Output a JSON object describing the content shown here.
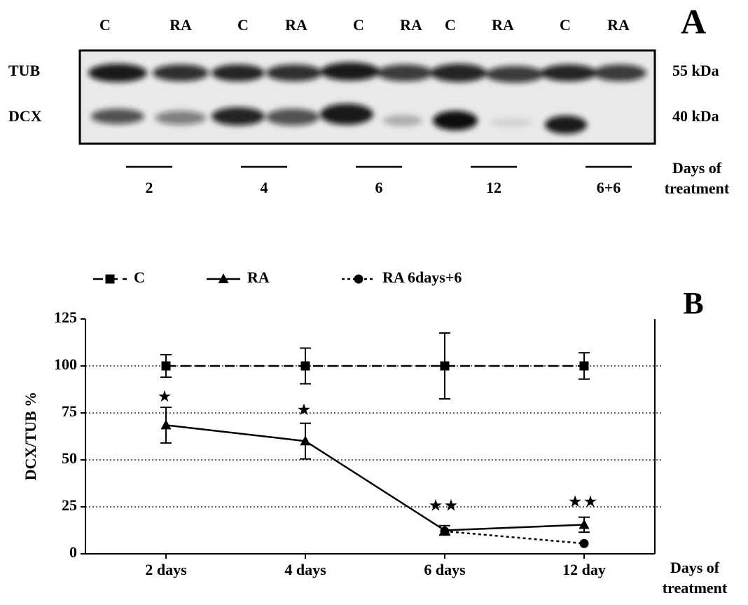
{
  "panel_labels": [
    "A",
    "B"
  ],
  "blot": {
    "lanes": [
      "C",
      "RA",
      "C",
      "RA",
      "C",
      "RA",
      "C",
      "RA",
      "C",
      "RA"
    ],
    "rows": [
      "TUB",
      "DCX"
    ],
    "sizes": [
      "55 kDa",
      "40 kDa"
    ],
    "groups": [
      "2",
      "4",
      "6",
      "12",
      "6+6"
    ],
    "groups_label": "Days of treatment"
  },
  "chart_data": {
    "type": "line",
    "categories": [
      "2 days",
      "4 days",
      "6 days",
      "12 day"
    ],
    "x_label": "Days of treatment",
    "y_label": "DCX/TUB %",
    "ylim": [
      0,
      125
    ],
    "yticks": [
      0,
      25,
      50,
      75,
      100,
      125
    ],
    "grid": true,
    "legend": "top",
    "series": [
      {
        "name": "C",
        "color": "#000000",
        "line_style": "dashed",
        "marker": "square",
        "values": [
          100,
          100,
          100,
          100
        ],
        "errors": [
          6,
          9.5,
          17.5,
          7
        ]
      },
      {
        "name": "RA",
        "color": "#000000",
        "line_style": "solid",
        "marker": "triangle",
        "values": [
          68.5,
          60,
          12.5,
          15.5
        ],
        "errors": [
          9.5,
          9.5,
          2.5,
          4
        ]
      },
      {
        "name": "RA 6days+6",
        "color": "#000000",
        "line_style": "dotted",
        "marker": "circle",
        "values": [
          null,
          null,
          12,
          5.5
        ],
        "errors": [
          null,
          null,
          null,
          null
        ]
      }
    ],
    "annotations": [
      {
        "text": "★",
        "x": "2 days",
        "y": 83
      },
      {
        "text": "★",
        "x": "4 days",
        "y": 76
      },
      {
        "text": "★★",
        "x": "6 days",
        "y": 25
      },
      {
        "text": "★★",
        "x": "12 day",
        "y": 27
      }
    ]
  }
}
